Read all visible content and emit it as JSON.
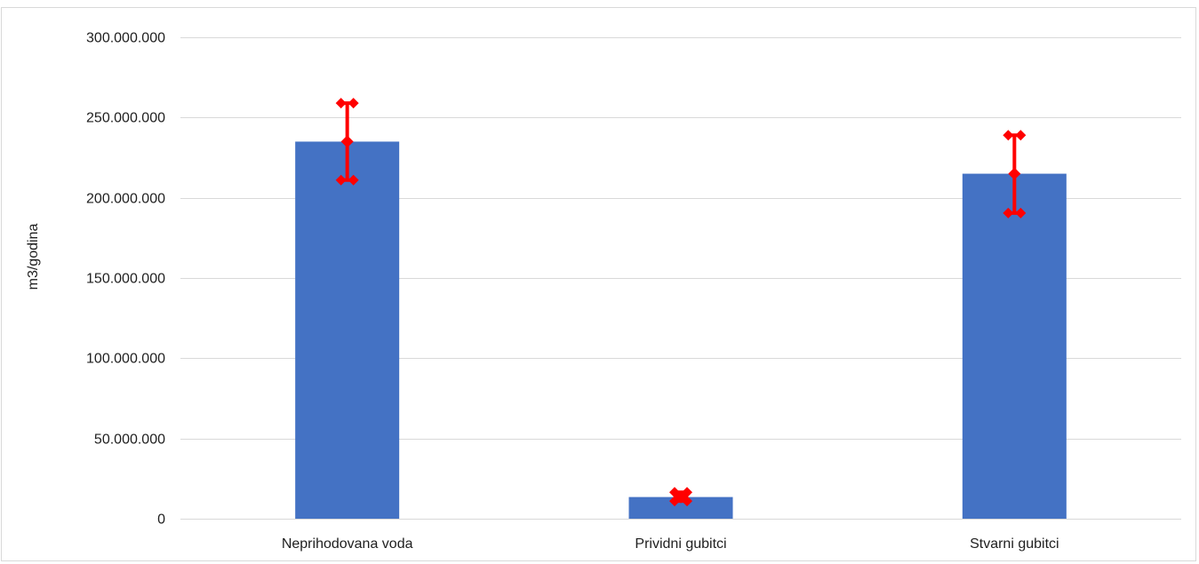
{
  "chart_data": {
    "type": "bar",
    "title": "",
    "xlabel": "",
    "ylabel": "m3/godina",
    "categories": [
      "Neprihodovana voda",
      "Prividni gubitci",
      "Stvarni gubitci"
    ],
    "series": [
      {
        "values": [
          235000000,
          13500000,
          215000000
        ],
        "error_low": [
          211000000,
          11000000,
          190500000
        ],
        "error_high": [
          259000000,
          16500000,
          239000000
        ],
        "color": "#4472c4",
        "error_color": "#ff0000"
      }
    ],
    "ylim": [
      0,
      300000000
    ],
    "yticks": [
      0,
      50000000,
      100000000,
      150000000,
      200000000,
      250000000,
      300000000
    ],
    "ytick_labels": [
      "0",
      "50.000.000",
      "100.000.000",
      "150.000.000",
      "200.000.000",
      "250.000.000",
      "300.000.000"
    ],
    "grid": true,
    "legend": "none",
    "gridline_color": "#d9d9d9"
  }
}
